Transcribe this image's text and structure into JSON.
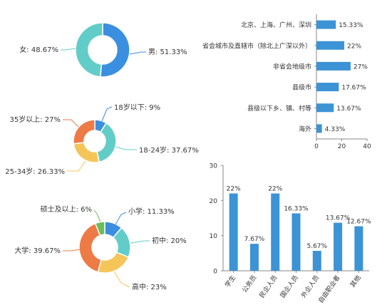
{
  "colors": {
    "blue": "#3b8fe0",
    "teal": "#62cdc8",
    "yellow": "#f6c55a",
    "orange": "#ee7a45",
    "green": "#6cbe5a",
    "bar": "#3c93d6",
    "axis": "#888888",
    "leader": "#9a9a9a"
  },
  "chart_data": [
    {
      "type": "pie",
      "variant": "donut",
      "slices": [
        {
          "label": "男",
          "value": 51.33,
          "display": "男: 51.33%",
          "color": "blue"
        },
        {
          "label": "女",
          "value": 48.67,
          "display": "女: 48.67%",
          "color": "teal"
        }
      ]
    },
    {
      "type": "pie",
      "variant": "donut",
      "slices": [
        {
          "label": "18岁以下",
          "value": 9,
          "display": "18岁以下: 9%",
          "color": "blue"
        },
        {
          "label": "18-24岁",
          "value": 37.67,
          "display": "18-24岁: 37.67%",
          "color": "teal"
        },
        {
          "label": "25-34岁",
          "value": 26.33,
          "display": "25-34岁: 26.33%",
          "color": "yellow"
        },
        {
          "label": "35岁以上",
          "value": 27,
          "display": "35岁以上: 27%",
          "color": "orange"
        }
      ]
    },
    {
      "type": "pie",
      "variant": "donut",
      "slices": [
        {
          "label": "小学",
          "value": 11.33,
          "display": "小学: 11.33%",
          "color": "blue"
        },
        {
          "label": "初中",
          "value": 20,
          "display": "初中: 20%",
          "color": "teal"
        },
        {
          "label": "高中",
          "value": 23,
          "display": "高中: 23%",
          "color": "yellow"
        },
        {
          "label": "大学",
          "value": 39.67,
          "display": "大学: 39.67%",
          "color": "orange"
        },
        {
          "label": "硕士及以上",
          "value": 6,
          "display": "硕士及以上: 6%",
          "color": "green"
        }
      ]
    },
    {
      "type": "bar",
      "orientation": "horizontal",
      "categories": [
        "北京、上海、广州、深圳",
        "省会城市及直辖市（除北上广深以外）",
        "非省会地级市",
        "县级市",
        "县级以下乡、镇、村等",
        "海外"
      ],
      "values": [
        15.33,
        22,
        27,
        17.67,
        13.67,
        4.33
      ],
      "value_labels": [
        "15.33%",
        "22%",
        "27%",
        "17.67%",
        "13.67%",
        "4.33%"
      ],
      "xlim": [
        0,
        40
      ],
      "xticks": [
        "0",
        "20",
        "40"
      ],
      "grid": false
    },
    {
      "type": "bar",
      "orientation": "vertical",
      "categories": [
        "学生",
        "公务员",
        "民企人员",
        "国企人员",
        "外企人员",
        "自由职业者",
        "其他"
      ],
      "values": [
        22,
        7.67,
        22,
        16.33,
        5.67,
        13.67,
        12.67
      ],
      "value_labels": [
        "22%",
        "7.67%",
        "22%",
        "16.33%",
        "5.67%",
        "13.67%",
        "12.67%"
      ],
      "ylim": [
        0,
        30
      ],
      "yticks": [
        "0",
        "10",
        "20",
        "30"
      ],
      "grid": false
    }
  ]
}
